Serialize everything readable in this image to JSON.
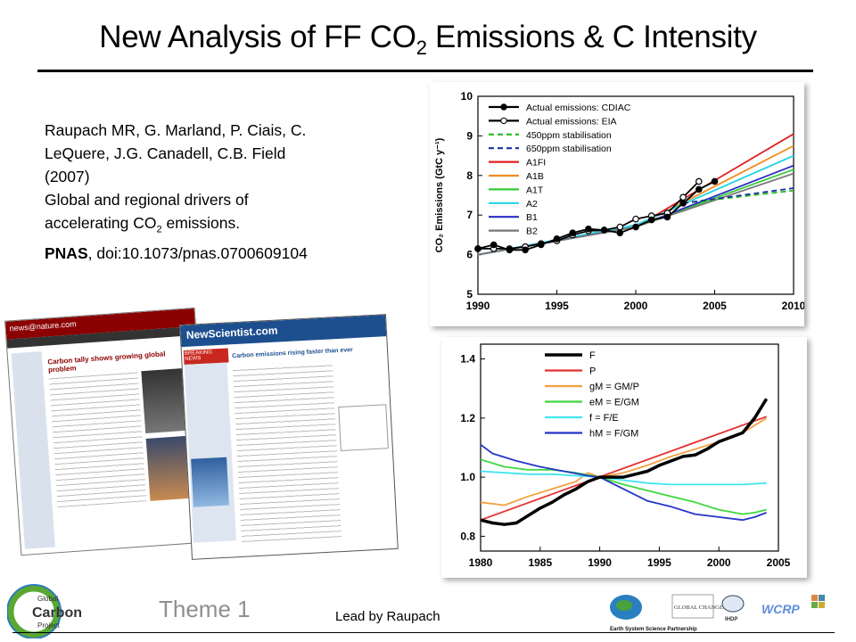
{
  "slide": {
    "title_pre": "New Analysis of FF CO",
    "title_sub": "2",
    "title_post": " Emissions & C Intensity",
    "citation": {
      "line1": "Raupach MR, G. Marland, P. Ciais, C.",
      "line2": "LeQuere, J.G. Canadell, C.B. Field",
      "line3": "(2007)",
      "line4": "Global and regional drivers of",
      "line5_pre": "accelerating CO",
      "line5_sub": "2",
      "line5_post": " emissions.",
      "journal": "PNAS",
      "doi": ", doi:10.1073/pnas.0700609104"
    },
    "footer": {
      "theme": "Theme 1",
      "lead": "Lead by Raupach",
      "logo_text": [
        "Global",
        "Carbon",
        "Project"
      ],
      "partner_text": [
        "GLOBAL CHANGE",
        "IHDP",
        "WCRP",
        "Earth System Science Partnership"
      ]
    },
    "newspages": {
      "nature": [
        "news@nature.com",
        "Carbon tally shows growing global problem"
      ],
      "newscientist": [
        "NewScientist.com",
        "BREAKING NEWS",
        "Carbon emissions rising faster than ever"
      ]
    }
  },
  "chart_data": [
    {
      "type": "line",
      "ylabel": "CO₂ Emissions (GtC y⁻¹)",
      "xlim": [
        1990,
        2010
      ],
      "ylim": [
        5,
        10
      ],
      "xticks": [
        1990,
        1995,
        2000,
        2005,
        2010
      ],
      "yticks": [
        5,
        6,
        7,
        8,
        9,
        10
      ],
      "legend_position": "top-left",
      "series": [
        {
          "name": "Actual emissions: CDIAC",
          "color": "#000000",
          "marker": "filled-circle",
          "x": [
            1990,
            1991,
            1992,
            1993,
            1994,
            1995,
            1996,
            1997,
            1998,
            1999,
            2000,
            2001,
            2002,
            2003,
            2004,
            2005
          ],
          "y": [
            6.15,
            6.25,
            6.12,
            6.12,
            6.25,
            6.4,
            6.55,
            6.65,
            6.62,
            6.55,
            6.7,
            6.88,
            6.95,
            7.3,
            7.65,
            7.85
          ]
        },
        {
          "name": "Actual emissions: EIA",
          "color": "#000000",
          "marker": "open-circle",
          "x": [
            1990,
            1991,
            1992,
            1993,
            1994,
            1995,
            1996,
            1997,
            1998,
            1999,
            2000,
            2001,
            2002,
            2003,
            2004
          ],
          "y": [
            6.15,
            6.15,
            6.15,
            6.2,
            6.28,
            6.35,
            6.5,
            6.6,
            6.62,
            6.7,
            6.9,
            6.98,
            7.05,
            7.45,
            7.85
          ]
        },
        {
          "name": "450ppm stabilisation",
          "color": "#22bb22",
          "dash": "dashed",
          "x": [
            2003,
            2010
          ],
          "y": [
            7.3,
            7.62
          ]
        },
        {
          "name": "650ppm stabilisation",
          "color": "#1a2fa0",
          "dash": "dashed",
          "x": [
            2003,
            2010
          ],
          "y": [
            7.3,
            7.68
          ]
        },
        {
          "name": "A1FI",
          "color": "#dd2222",
          "x": [
            1990,
            2000,
            2010
          ],
          "y": [
            6.0,
            6.7,
            9.05
          ]
        },
        {
          "name": "A1B",
          "color": "#f08c1e",
          "x": [
            1990,
            2000,
            2010
          ],
          "y": [
            6.0,
            6.7,
            8.75
          ]
        },
        {
          "name": "A1T",
          "color": "#33cc33",
          "x": [
            1990,
            2000,
            2010
          ],
          "y": [
            6.0,
            6.7,
            8.15
          ]
        },
        {
          "name": "A2",
          "color": "#22d4e6",
          "x": [
            1990,
            2000,
            2010
          ],
          "y": [
            6.0,
            6.75,
            8.5
          ]
        },
        {
          "name": "B1",
          "color": "#2b2bc4",
          "x": [
            1990,
            2000,
            2010
          ],
          "y": [
            6.0,
            6.7,
            8.25
          ]
        },
        {
          "name": "B2",
          "color": "#777777",
          "x": [
            1990,
            2000,
            2010
          ],
          "y": [
            6.0,
            6.7,
            8.05
          ]
        }
      ]
    },
    {
      "type": "line",
      "xlim": [
        1980,
        2005
      ],
      "ylim": [
        0.75,
        1.45
      ],
      "xticks": [
        1980,
        1985,
        1990,
        1995,
        2000,
        2005
      ],
      "yticks": [
        0.8,
        1.0,
        1.2,
        1.4
      ],
      "yticklabels": [
        "0.8",
        "1.0",
        "1.2",
        "1.4"
      ],
      "legend_position": "top-left",
      "series": [
        {
          "name": "F",
          "color": "#000000",
          "width": 3.5,
          "x": [
            1980,
            1981,
            1982,
            1983,
            1984,
            1985,
            1986,
            1987,
            1988,
            1989,
            1990,
            1991,
            1992,
            1993,
            1994,
            1995,
            1996,
            1997,
            1998,
            1999,
            2000,
            2001,
            2002,
            2003,
            2004
          ],
          "y": [
            0.855,
            0.845,
            0.84,
            0.845,
            0.87,
            0.895,
            0.915,
            0.94,
            0.96,
            0.985,
            1.0,
            1.0,
            1.0,
            1.01,
            1.02,
            1.04,
            1.055,
            1.07,
            1.075,
            1.095,
            1.12,
            1.135,
            1.15,
            1.2,
            1.265
          ]
        },
        {
          "name": "P",
          "color": "#e53030",
          "x": [
            1980,
            2004
          ],
          "y": [
            0.855,
            1.205
          ]
        },
        {
          "name": "gM = GM/P",
          "color": "#f3a040",
          "x": [
            1980,
            1982,
            1984,
            1986,
            1988,
            1989,
            1990,
            1992,
            1994,
            1996,
            1998,
            2000,
            2002,
            2004
          ],
          "y": [
            0.915,
            0.905,
            0.935,
            0.96,
            0.985,
            1.015,
            1.0,
            1.015,
            1.04,
            1.07,
            1.095,
            1.12,
            1.15,
            1.2
          ]
        },
        {
          "name": "eM = E/GM",
          "color": "#3fd83f",
          "x": [
            1980,
            1982,
            1984,
            1986,
            1988,
            1990,
            1992,
            1994,
            1996,
            1998,
            2000,
            2002,
            2003,
            2004
          ],
          "y": [
            1.06,
            1.035,
            1.025,
            1.025,
            1.015,
            1.0,
            0.975,
            0.955,
            0.935,
            0.915,
            0.89,
            0.875,
            0.88,
            0.89
          ]
        },
        {
          "name": "f = F/E",
          "color": "#40e6ee",
          "x": [
            1980,
            1982,
            1984,
            1986,
            1988,
            1990,
            1992,
            1994,
            1996,
            1998,
            2000,
            2002,
            2004
          ],
          "y": [
            1.02,
            1.015,
            1.01,
            1.01,
            1.005,
            1.0,
            0.99,
            0.98,
            0.975,
            0.975,
            0.975,
            0.975,
            0.98
          ]
        },
        {
          "name": "hM = F/GM",
          "color": "#2535c8",
          "x": [
            1980,
            1981,
            1983,
            1985,
            1987,
            1989,
            1990,
            1992,
            1994,
            1996,
            1998,
            2000,
            2002,
            2003,
            2004
          ],
          "y": [
            1.11,
            1.08,
            1.055,
            1.035,
            1.02,
            1.005,
            1.0,
            0.96,
            0.92,
            0.9,
            0.875,
            0.865,
            0.855,
            0.865,
            0.88
          ]
        }
      ]
    }
  ]
}
